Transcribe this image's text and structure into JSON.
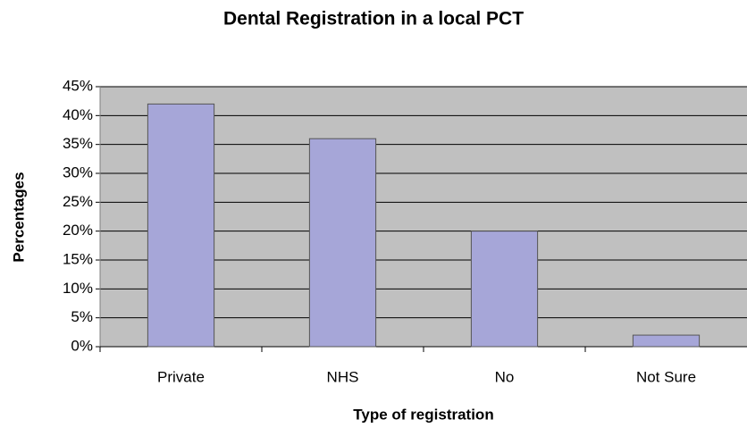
{
  "chart_data": {
    "type": "bar",
    "title": "Dental Registration in a local PCT",
    "x_label": "Type of registration",
    "y_label": "Percentages",
    "categories": [
      "Private",
      "NHS",
      "No",
      "Not Sure"
    ],
    "values": [
      42,
      36,
      20,
      2
    ],
    "color": "#a6a6d8",
    "ylim": [
      0,
      45
    ],
    "yticks": [
      {
        "value": 0,
        "label": "0%"
      },
      {
        "value": 5,
        "label": "5%"
      },
      {
        "value": 10,
        "label": "10%"
      },
      {
        "value": 15,
        "label": "15%"
      },
      {
        "value": 20,
        "label": "20%"
      },
      {
        "value": 25,
        "label": "25%"
      },
      {
        "value": 30,
        "label": "30%"
      },
      {
        "value": 35,
        "label": "35%"
      },
      {
        "value": 40,
        "label": "40%"
      },
      {
        "value": 45,
        "label": "45%"
      }
    ],
    "grid": true
  }
}
